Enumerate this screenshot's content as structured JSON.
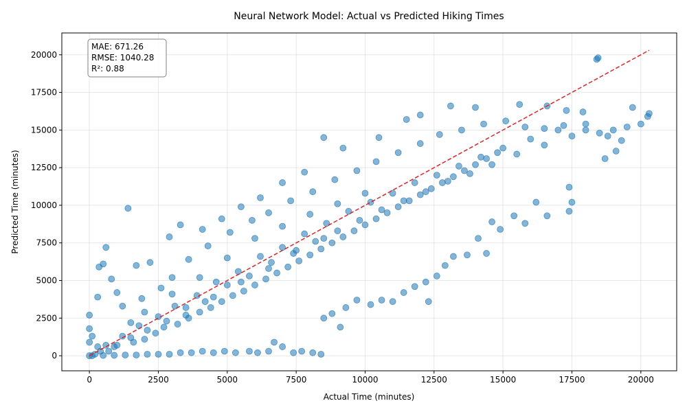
{
  "chart_data": {
    "type": "scatter",
    "title": "Neural Network Model: Actual vs Predicted Hiking Times",
    "xlabel": "Actual Time (minutes)",
    "ylabel": "Predicted Time (minutes)",
    "xlim": [
      -1000,
      21300
    ],
    "ylim": [
      -1000,
      21450
    ],
    "xticks": [
      0,
      2500,
      5000,
      7500,
      10000,
      12500,
      15000,
      17500,
      20000
    ],
    "yticks": [
      0,
      2500,
      5000,
      7500,
      10000,
      12500,
      15000,
      17500,
      20000
    ],
    "grid": true,
    "point_color": "#1f77b4",
    "reference_line": {
      "x": [
        0,
        20300
      ],
      "y": [
        0,
        20300
      ],
      "color": "#d62728",
      "style": "dashed"
    },
    "stats": [
      "MAE: 671.26",
      "RMSE: 1040.28",
      "R²: 0.88"
    ],
    "points": [
      [
        0,
        0
      ],
      [
        200,
        100
      ],
      [
        400,
        300
      ],
      [
        600,
        700
      ],
      [
        900,
        600
      ],
      [
        1200,
        1300
      ],
      [
        1500,
        1200
      ],
      [
        1800,
        2000
      ],
      [
        2100,
        1700
      ],
      [
        2500,
        2600
      ],
      [
        2800,
        2300
      ],
      [
        3100,
        3300
      ],
      [
        3500,
        3200
      ],
      [
        3900,
        4000
      ],
      [
        4200,
        3600
      ],
      [
        4600,
        4900
      ],
      [
        5000,
        4700
      ],
      [
        5400,
        5600
      ],
      [
        5800,
        5300
      ],
      [
        6200,
        6600
      ],
      [
        6600,
        6200
      ],
      [
        7000,
        7200
      ],
      [
        7400,
        6800
      ],
      [
        7800,
        8100
      ],
      [
        8200,
        7600
      ],
      [
        8600,
        8800
      ],
      [
        9000,
        8300
      ],
      [
        9400,
        9600
      ],
      [
        9800,
        9000
      ],
      [
        10200,
        10200
      ],
      [
        10600,
        9700
      ],
      [
        11000,
        10800
      ],
      [
        11400,
        10300
      ],
      [
        11800,
        11500
      ],
      [
        12200,
        10900
      ],
      [
        12600,
        12000
      ],
      [
        13000,
        11600
      ],
      [
        13400,
        12600
      ],
      [
        13800,
        12100
      ],
      [
        14200,
        13200
      ],
      [
        14600,
        12700
      ],
      [
        15000,
        13800
      ],
      [
        15500,
        13400
      ],
      [
        16000,
        14400
      ],
      [
        16500,
        14000
      ],
      [
        17000,
        15000
      ],
      [
        17500,
        14600
      ],
      [
        18000,
        15400
      ],
      [
        18500,
        14800
      ],
      [
        19000,
        15000
      ],
      [
        19500,
        15200
      ],
      [
        20000,
        15400
      ],
      [
        20300,
        16100
      ],
      [
        20250,
        15900
      ],
      [
        19700,
        16500
      ],
      [
        18400,
        19700
      ],
      [
        18450,
        19800
      ],
      [
        17900,
        16200
      ],
      [
        17300,
        16300
      ],
      [
        16600,
        16600
      ],
      [
        15600,
        16700
      ],
      [
        14000,
        16500
      ],
      [
        13100,
        16600
      ],
      [
        12000,
        16000
      ],
      [
        11500,
        15700
      ],
      [
        10500,
        14500
      ],
      [
        9200,
        13800
      ],
      [
        8500,
        14500
      ],
      [
        7800,
        12200
      ],
      [
        7000,
        11500
      ],
      [
        6200,
        10500
      ],
      [
        5500,
        9900
      ],
      [
        4800,
        9100
      ],
      [
        4100,
        8400
      ],
      [
        3300,
        8700
      ],
      [
        2900,
        7900
      ],
      [
        2200,
        6200
      ],
      [
        1700,
        6000
      ],
      [
        1400,
        9800
      ],
      [
        600,
        7200
      ],
      [
        500,
        6100
      ],
      [
        350,
        5900
      ],
      [
        800,
        5100
      ],
      [
        300,
        3900
      ],
      [
        1000,
        4200
      ],
      [
        1200,
        3300
      ],
      [
        1900,
        3800
      ],
      [
        2600,
        4500
      ],
      [
        3000,
        5200
      ],
      [
        3600,
        6400
      ],
      [
        4300,
        7300
      ],
      [
        5100,
        8200
      ],
      [
        5900,
        9000
      ],
      [
        6500,
        9500
      ],
      [
        7300,
        10300
      ],
      [
        8100,
        10900
      ],
      [
        8900,
        11700
      ],
      [
        9700,
        12300
      ],
      [
        10400,
        12900
      ],
      [
        11200,
        13500
      ],
      [
        12000,
        14100
      ],
      [
        12700,
        14700
      ],
      [
        13500,
        15000
      ],
      [
        14300,
        15400
      ],
      [
        15100,
        15600
      ],
      [
        15800,
        15200
      ],
      [
        16500,
        15100
      ],
      [
        17200,
        15300
      ],
      [
        18000,
        15000
      ],
      [
        18800,
        14600
      ],
      [
        19300,
        14300
      ],
      [
        19100,
        13600
      ],
      [
        18700,
        13100
      ],
      [
        17400,
        11200
      ],
      [
        17500,
        10200
      ],
      [
        17400,
        9600
      ],
      [
        16600,
        9300
      ],
      [
        16200,
        10200
      ],
      [
        15800,
        8800
      ],
      [
        15400,
        9300
      ],
      [
        14900,
        8400
      ],
      [
        14600,
        8900
      ],
      [
        14400,
        6800
      ],
      [
        14100,
        7800
      ],
      [
        13700,
        6700
      ],
      [
        13200,
        6600
      ],
      [
        12900,
        6000
      ],
      [
        12600,
        5300
      ],
      [
        12300,
        3600
      ],
      [
        12200,
        4900
      ],
      [
        11800,
        4600
      ],
      [
        11400,
        4200
      ],
      [
        11000,
        3600
      ],
      [
        10600,
        3700
      ],
      [
        10200,
        3400
      ],
      [
        9700,
        3700
      ],
      [
        9300,
        3200
      ],
      [
        9100,
        1900
      ],
      [
        8800,
        2800
      ],
      [
        8500,
        2500
      ],
      [
        8400,
        100
      ],
      [
        8100,
        200
      ],
      [
        7700,
        300
      ],
      [
        7400,
        200
      ],
      [
        7000,
        600
      ],
      [
        6700,
        900
      ],
      [
        6500,
        300
      ],
      [
        6100,
        200
      ],
      [
        5800,
        300
      ],
      [
        5300,
        200
      ],
      [
        4900,
        300
      ],
      [
        4500,
        200
      ],
      [
        4100,
        300
      ],
      [
        3700,
        200
      ],
      [
        3300,
        200
      ],
      [
        2900,
        100
      ],
      [
        2500,
        100
      ],
      [
        2100,
        100
      ],
      [
        1700,
        50
      ],
      [
        1300,
        50
      ],
      [
        900,
        30
      ],
      [
        500,
        20
      ],
      [
        100,
        0
      ],
      [
        0,
        2700
      ],
      [
        0,
        1800
      ],
      [
        0,
        900
      ],
      [
        100,
        1300
      ],
      [
        300,
        600
      ],
      [
        700,
        300
      ],
      [
        1000,
        700
      ],
      [
        1600,
        900
      ],
      [
        2000,
        1100
      ],
      [
        2400,
        1500
      ],
      [
        2700,
        1900
      ],
      [
        3200,
        2100
      ],
      [
        3600,
        2500
      ],
      [
        4000,
        2900
      ],
      [
        4400,
        3200
      ],
      [
        4800,
        3600
      ],
      [
        5200,
        4000
      ],
      [
        5600,
        4300
      ],
      [
        6000,
        4700
      ],
      [
        6400,
        5100
      ],
      [
        6800,
        5500
      ],
      [
        7200,
        5900
      ],
      [
        7600,
        6300
      ],
      [
        8000,
        6700
      ],
      [
        8400,
        7100
      ],
      [
        8800,
        7500
      ],
      [
        9200,
        7900
      ],
      [
        9600,
        8300
      ],
      [
        10000,
        8700
      ],
      [
        10400,
        9100
      ],
      [
        10800,
        9500
      ],
      [
        11200,
        9900
      ],
      [
        11600,
        10300
      ],
      [
        12000,
        10700
      ],
      [
        12400,
        11100
      ],
      [
        12800,
        11500
      ],
      [
        13200,
        11900
      ],
      [
        13600,
        12300
      ],
      [
        14000,
        12700
      ],
      [
        14400,
        13100
      ],
      [
        14800,
        13500
      ],
      [
        5000,
        6500
      ],
      [
        6000,
        7800
      ],
      [
        7000,
        8600
      ],
      [
        8000,
        9400
      ],
      [
        9000,
        10100
      ],
      [
        10000,
        10800
      ],
      [
        4000,
        5200
      ],
      [
        3000,
        4100
      ],
      [
        2000,
        2900
      ],
      [
        1500,
        2200
      ],
      [
        3500,
        2700
      ],
      [
        4500,
        3900
      ],
      [
        5500,
        4900
      ],
      [
        6500,
        5800
      ],
      [
        7500,
        7000
      ],
      [
        8500,
        7800
      ]
    ]
  }
}
